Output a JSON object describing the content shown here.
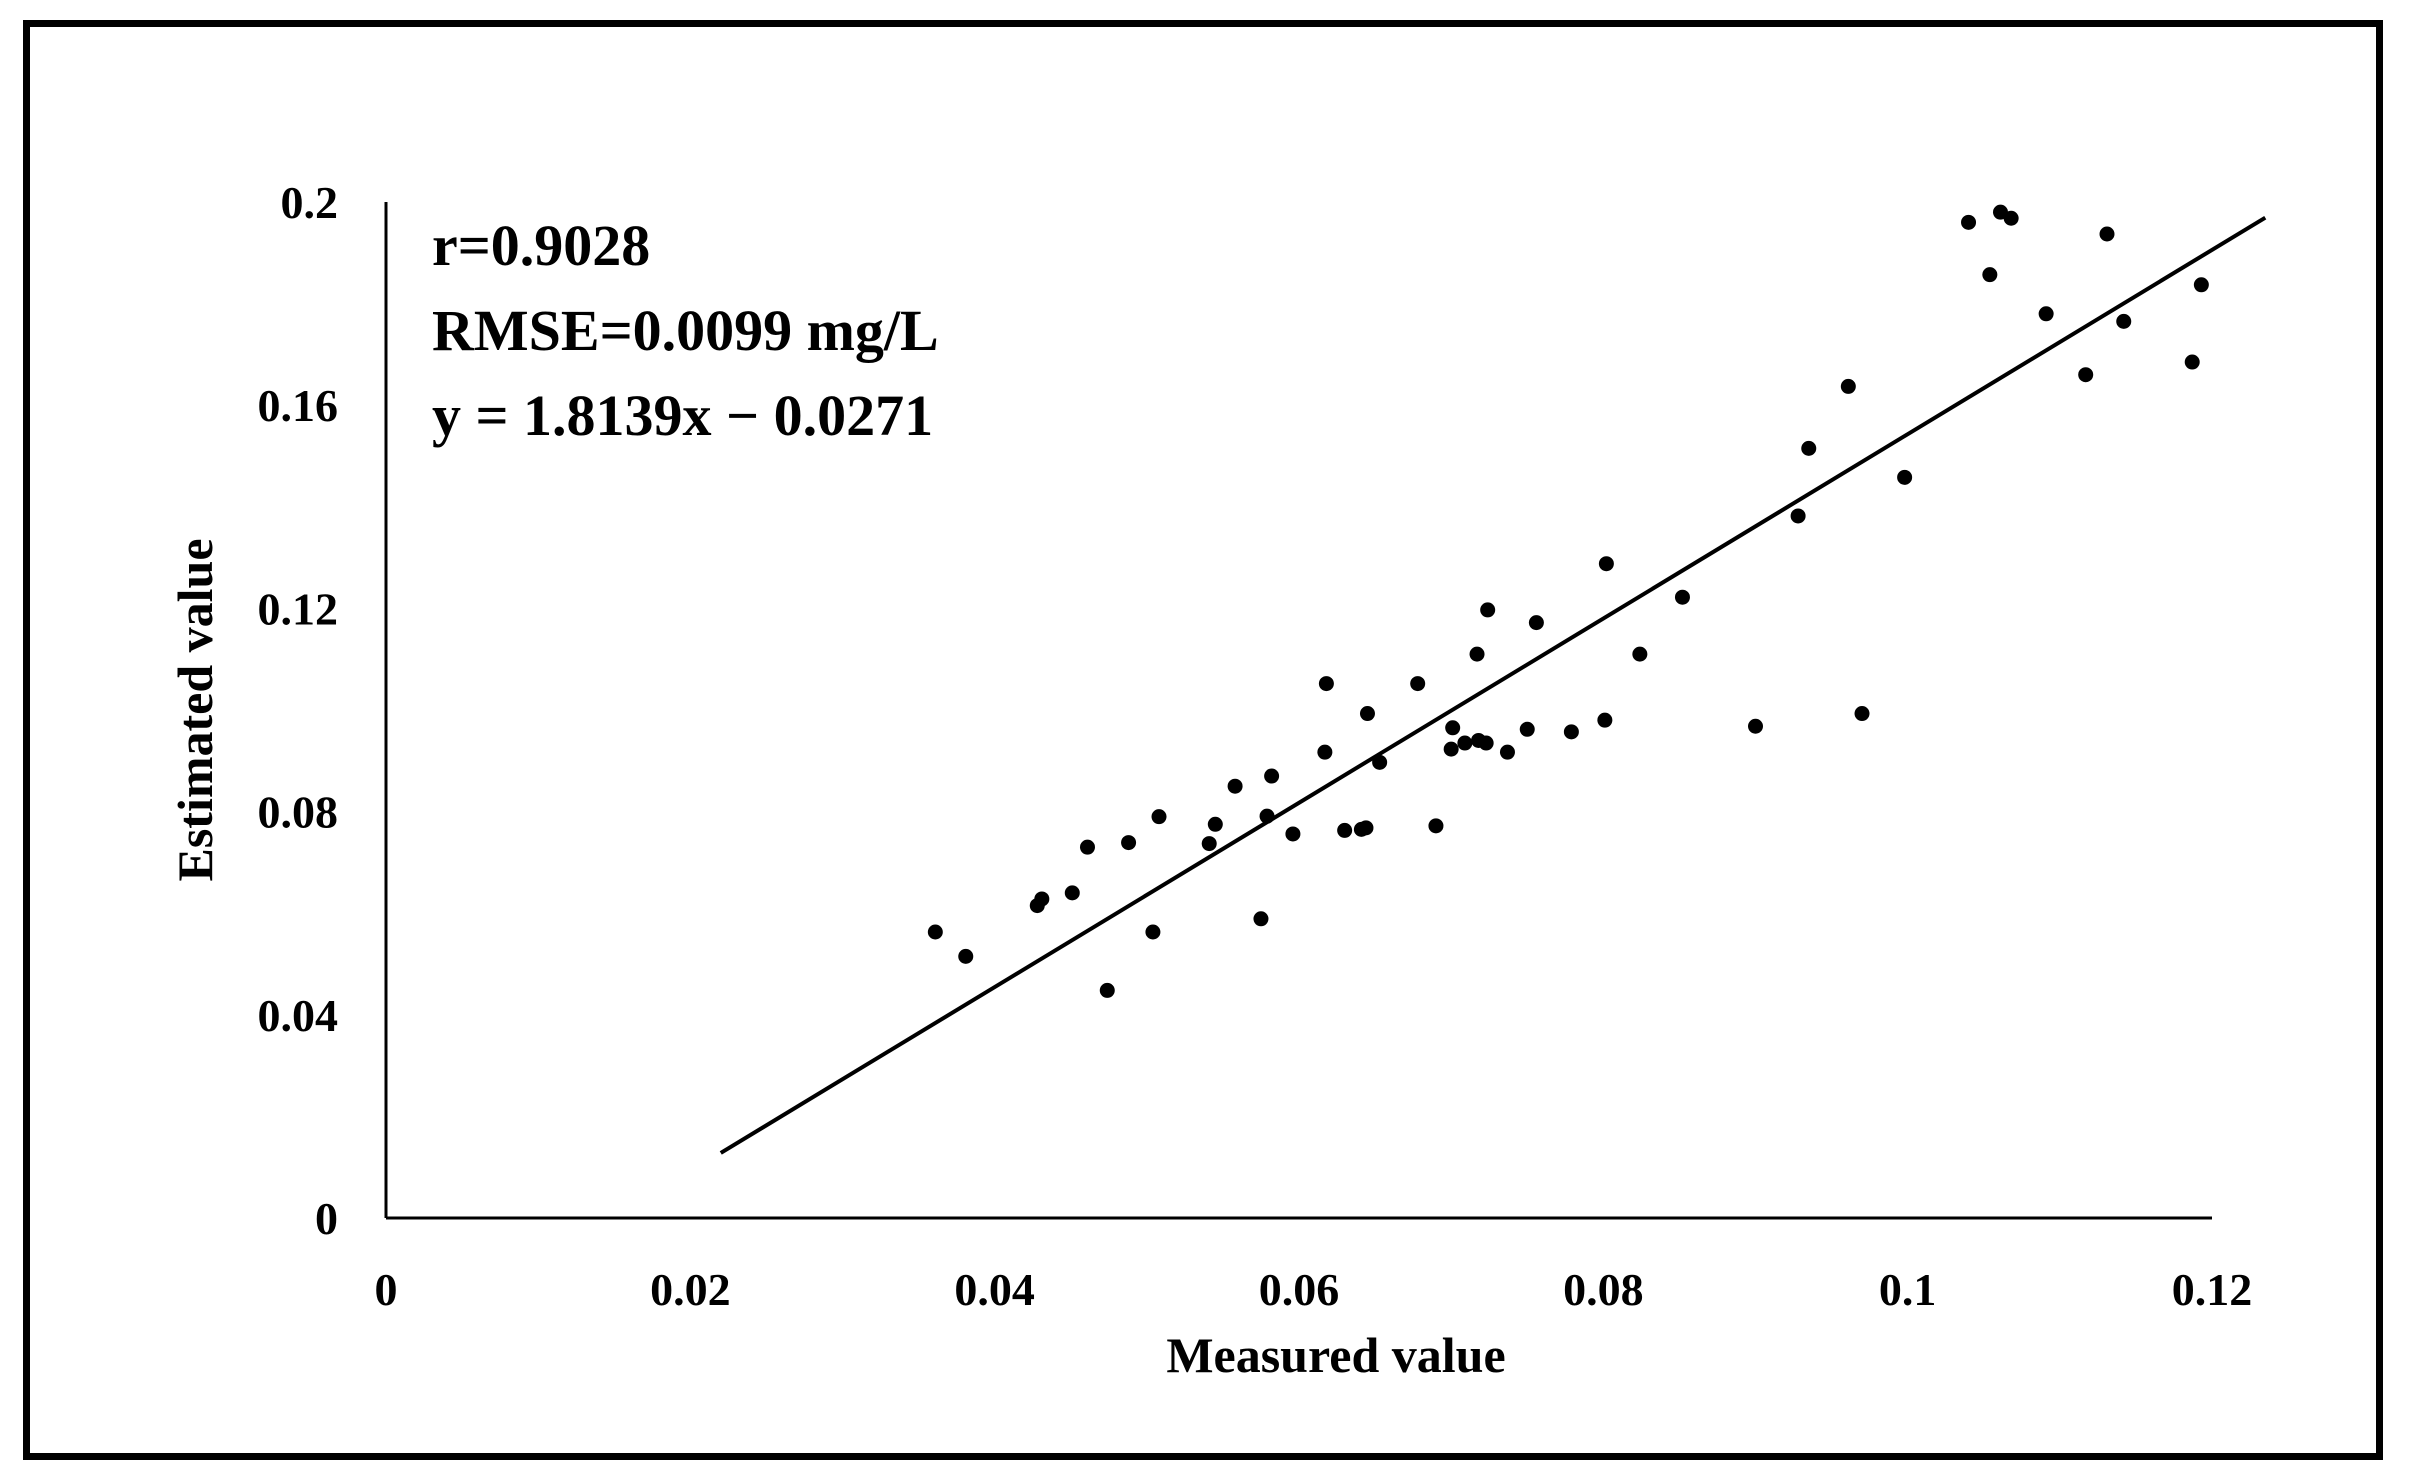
{
  "chart_data": {
    "type": "scatter",
    "title": "",
    "xlabel": "Measured value",
    "ylabel": "Estimated value",
    "xlim": [
      0,
      0.12
    ],
    "ylim": [
      0,
      0.2
    ],
    "xticks": [
      "0",
      "0.02",
      "0.04",
      "0.06",
      "0.08",
      "0.1",
      "0.12"
    ],
    "yticks": [
      "0",
      "0.04",
      "0.08",
      "0.12",
      "0.16",
      "0.2"
    ],
    "grid": false,
    "annotations": {
      "r": "r=0.9028",
      "rmse": "RMSE=0.0099 mg/L",
      "equation": "y = 1.8139x − 0.0271"
    },
    "trendline": {
      "slope": 1.8139,
      "intercept": -0.0271,
      "x_start": 0.022,
      "x_end": 0.1235
    },
    "series": [
      {
        "name": "samples",
        "color": "#000000",
        "points": [
          [
            0.0361,
            0.0563
          ],
          [
            0.0381,
            0.0515
          ],
          [
            0.0428,
            0.0615
          ],
          [
            0.0431,
            0.0628
          ],
          [
            0.0451,
            0.064
          ],
          [
            0.0461,
            0.073
          ],
          [
            0.0474,
            0.0448
          ],
          [
            0.0488,
            0.0739
          ],
          [
            0.0504,
            0.0563
          ],
          [
            0.0508,
            0.079
          ],
          [
            0.0541,
            0.0737
          ],
          [
            0.0545,
            0.0775
          ],
          [
            0.0558,
            0.085
          ],
          [
            0.0575,
            0.0589
          ],
          [
            0.0579,
            0.0791
          ],
          [
            0.0582,
            0.087
          ],
          [
            0.0596,
            0.0756
          ],
          [
            0.0617,
            0.0917
          ],
          [
            0.0618,
            0.1052
          ],
          [
            0.063,
            0.0763
          ],
          [
            0.0641,
            0.0765
          ],
          [
            0.0644,
            0.0768
          ],
          [
            0.0645,
            0.0993
          ],
          [
            0.0653,
            0.0897
          ],
          [
            0.0678,
            0.1052
          ],
          [
            0.069,
            0.0772
          ],
          [
            0.07,
            0.0923
          ],
          [
            0.0701,
            0.0965
          ],
          [
            0.0709,
            0.0935
          ],
          [
            0.0717,
            0.111
          ],
          [
            0.0718,
            0.094
          ],
          [
            0.0723,
            0.0935
          ],
          [
            0.0724,
            0.1197
          ],
          [
            0.0737,
            0.0917
          ],
          [
            0.075,
            0.0962
          ],
          [
            0.0756,
            0.1172
          ],
          [
            0.0779,
            0.0957
          ],
          [
            0.0801,
            0.098
          ],
          [
            0.0802,
            0.1288
          ],
          [
            0.0824,
            0.111
          ],
          [
            0.0852,
            0.1222
          ],
          [
            0.09,
            0.0968
          ],
          [
            0.0928,
            0.1382
          ],
          [
            0.0935,
            0.1515
          ],
          [
            0.0961,
            0.1637
          ],
          [
            0.097,
            0.0993
          ],
          [
            0.0998,
            0.1458
          ],
          [
            0.104,
            0.196
          ],
          [
            0.1054,
            0.1857
          ],
          [
            0.1061,
            0.198
          ],
          [
            0.1068,
            0.1968
          ],
          [
            0.1091,
            0.178
          ],
          [
            0.1117,
            0.166
          ],
          [
            0.1131,
            0.1937
          ],
          [
            0.1142,
            0.1765
          ],
          [
            0.1187,
            0.1685
          ],
          [
            0.1193,
            0.1837
          ]
        ]
      }
    ]
  }
}
